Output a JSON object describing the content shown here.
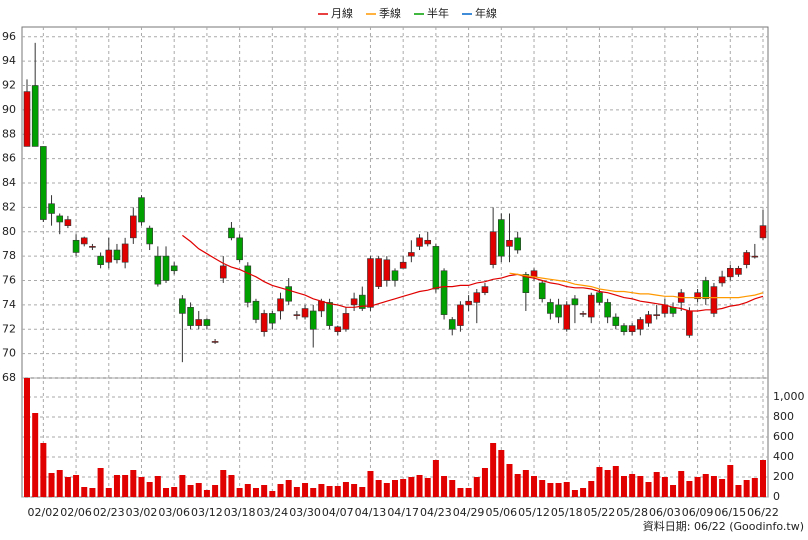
{
  "chart_data": {
    "type": "candlestick",
    "legend": "top",
    "grid": true,
    "up_color": "#e00000",
    "down_color": "#00a000",
    "categories": [
      null,
      null,
      "02/02",
      null,
      null,
      null,
      "02/06",
      null,
      null,
      null,
      "02/23",
      null,
      null,
      null,
      "03/02",
      null,
      null,
      null,
      "03/06",
      null,
      null,
      null,
      "03/12",
      null,
      null,
      null,
      "03/18",
      null,
      null,
      null,
      "03/24",
      null,
      null,
      null,
      "03/30",
      null,
      null,
      null,
      "04/07",
      null,
      null,
      null,
      "04/13",
      null,
      null,
      null,
      "04/17",
      null,
      null,
      null,
      "04/23",
      null,
      null,
      null,
      "04/29",
      null,
      null,
      null,
      "05/06",
      null,
      null,
      null,
      "05/12",
      null,
      null,
      null,
      "05/18",
      null,
      null,
      null,
      "05/22",
      null,
      null,
      null,
      "05/28",
      null,
      null,
      null,
      "06/03",
      null,
      null,
      null,
      "06/09",
      null,
      null,
      null,
      "06/15",
      null,
      null,
      null,
      "06/22"
    ],
    "open": [
      87,
      92,
      87,
      82.3,
      81.3,
      80.5,
      79.3,
      79,
      78.8,
      78,
      77.5,
      78.5,
      77.5,
      79.5,
      82.8,
      80.3,
      78,
      78,
      77.2,
      74.5,
      73.8,
      72.3,
      72.8,
      71,
      76.2,
      80.3,
      79.5,
      77.2,
      74.3,
      71.8,
      73.3,
      73.5,
      75.5,
      73.2,
      73,
      73.5,
      73.5,
      74.2,
      71.8,
      72,
      74,
      74.8,
      73.8,
      75.5,
      76,
      76.8,
      77,
      78,
      78.8,
      79,
      78.8,
      76.8,
      72.8,
      72.3,
      74,
      74.2,
      75,
      77.3,
      81,
      78.8,
      79.5,
      76.5,
      76.3,
      75.8,
      74.2,
      74,
      72,
      74.5,
      73.3,
      73,
      75,
      74.2,
      73,
      72.3,
      71.8,
      72,
      72.5,
      73.2,
      73.3,
      73.8,
      74.2,
      71.5,
      74.5,
      76,
      73.3,
      75.8,
      76.3,
      76.5,
      77.3,
      78,
      79.5
    ],
    "high": [
      92.5,
      95.5,
      87,
      83,
      81.5,
      81.3,
      79.8,
      79.6,
      79,
      78.3,
      79.5,
      79,
      79.5,
      82,
      83,
      80.5,
      78.8,
      78.8,
      77.5,
      74.8,
      74.2,
      73.5,
      72.9,
      71.2,
      78,
      80.8,
      79.8,
      77.5,
      74.5,
      73.6,
      73.5,
      75,
      76.2,
      73.5,
      74,
      74,
      74.5,
      74.5,
      72.3,
      73.8,
      75,
      75.5,
      78,
      78,
      78,
      77,
      78,
      79.3,
      79.8,
      80,
      79,
      77,
      73,
      74.3,
      74.8,
      75.3,
      75.8,
      82,
      81.5,
      81.5,
      80,
      76.7,
      77,
      76,
      74.5,
      74.5,
      74.3,
      74.8,
      73.5,
      75,
      75.3,
      74.5,
      73.3,
      72.5,
      72.5,
      73,
      73.5,
      74,
      74.5,
      74.2,
      75.3,
      73.8,
      75.3,
      76.3,
      75.8,
      76.8,
      77.3,
      77.2,
      78.5,
      79,
      81.8
    ],
    "low": [
      87,
      87,
      80.8,
      80.5,
      79.8,
      80.3,
      78,
      78.8,
      78.5,
      77,
      77,
      77.4,
      77,
      79,
      80.5,
      78.5,
      75.5,
      75.8,
      76.5,
      69.3,
      72,
      72,
      72,
      70.8,
      75.8,
      79.3,
      77.5,
      73.8,
      72.5,
      71.4,
      72,
      72.8,
      74,
      72.8,
      72.8,
      70.5,
      73,
      72,
      71.5,
      71.8,
      73.5,
      73.5,
      73.5,
      75.3,
      75.5,
      75.5,
      77,
      77.5,
      78.5,
      78.8,
      75,
      72.8,
      71.5,
      71.8,
      73.5,
      72.5,
      74.8,
      77,
      77.5,
      77.5,
      78.2,
      73.5,
      76,
      74.2,
      72.8,
      72.5,
      71.8,
      72.5,
      73,
      72.5,
      74,
      72.5,
      72,
      71.5,
      71.5,
      71.5,
      72.2,
      72.8,
      73,
      73,
      73.5,
      71.3,
      74.2,
      74,
      73,
      75.5,
      76,
      76.3,
      77,
      77.8,
      79.3
    ],
    "close": [
      91.5,
      87,
      81,
      81.5,
      80.8,
      81,
      78.3,
      79.5,
      78.8,
      77.3,
      78.5,
      77.7,
      79,
      81.3,
      80.8,
      79,
      75.7,
      76,
      76.8,
      73.3,
      72.3,
      72.8,
      72.3,
      71,
      77.2,
      79.5,
      77.7,
      74.2,
      72.8,
      73.3,
      72.5,
      74.5,
      74.3,
      73.2,
      73.7,
      72,
      74.3,
      72.3,
      72.2,
      73.3,
      74.5,
      73.7,
      77.8,
      77.8,
      77.7,
      76,
      77.5,
      78.3,
      79.5,
      79.3,
      75.3,
      73.2,
      72,
      74,
      74.3,
      75,
      75.5,
      80,
      78,
      79.3,
      78.5,
      75,
      76.8,
      74.5,
      73.3,
      73,
      74,
      74,
      73.3,
      74.8,
      74.2,
      73,
      72.3,
      71.8,
      72.3,
      72.8,
      73.2,
      73.2,
      74,
      73.3,
      75,
      73.5,
      75,
      74.5,
      75.5,
      76.3,
      77,
      77,
      78.3,
      78,
      80.5
    ],
    "ylim": [
      68,
      96.8
    ],
    "yticks": [
      68,
      70,
      72,
      74,
      76,
      78,
      80,
      82,
      84,
      86,
      88,
      90,
      92,
      94,
      96
    ],
    "series": [
      {
        "name": "月線",
        "color": "#e00000",
        "values": [
          null,
          null,
          null,
          null,
          null,
          null,
          null,
          null,
          null,
          null,
          null,
          null,
          null,
          null,
          null,
          null,
          null,
          null,
          null,
          79.7,
          79.2,
          78.6,
          78.2,
          77.8,
          77.4,
          77.1,
          76.9,
          76.6,
          76.3,
          75.9,
          75.6,
          75.4,
          75.2,
          75.0,
          74.8,
          74.5,
          74.3,
          74.1,
          74.0,
          73.8,
          73.8,
          73.9,
          73.9,
          74.1,
          74.3,
          74.5,
          74.7,
          74.9,
          75.1,
          75.2,
          75.4,
          75.5,
          75.5,
          75.6,
          75.6,
          75.8,
          75.9,
          76.1,
          76.2,
          76.4,
          76.5,
          76.3,
          76.2,
          76.0,
          75.8,
          75.7,
          75.5,
          75.4,
          75.4,
          75.3,
          75.1,
          75.0,
          74.8,
          74.6,
          74.5,
          74.3,
          74.2,
          74.1,
          74.0,
          73.8,
          73.7,
          73.5,
          73.5,
          73.6,
          73.6,
          73.7,
          73.9,
          74.0,
          74.2,
          74.5,
          74.7
        ]
      },
      {
        "name": "季線",
        "color": "#ff9900",
        "values": [
          null,
          null,
          null,
          null,
          null,
          null,
          null,
          null,
          null,
          null,
          null,
          null,
          null,
          null,
          null,
          null,
          null,
          null,
          null,
          null,
          null,
          null,
          null,
          null,
          null,
          null,
          null,
          null,
          null,
          null,
          null,
          null,
          null,
          null,
          null,
          null,
          null,
          null,
          null,
          null,
          null,
          null,
          null,
          null,
          null,
          null,
          null,
          null,
          null,
          null,
          null,
          null,
          null,
          null,
          null,
          null,
          null,
          null,
          null,
          76.6,
          76.5,
          76.4,
          76.3,
          76.2,
          76.1,
          76.0,
          75.9,
          75.7,
          75.6,
          75.5,
          75.3,
          75.2,
          75.1,
          75.1,
          75.0,
          74.9,
          74.9,
          74.8,
          74.7,
          74.7,
          74.6,
          74.6,
          74.6,
          74.6,
          74.6,
          74.6,
          74.6,
          74.6,
          74.7,
          74.8,
          75.0
        ]
      },
      {
        "name": "半年",
        "color": "#00a000",
        "values": [
          null,
          null,
          null,
          null,
          null,
          null,
          null,
          null,
          null,
          null,
          null,
          null,
          null,
          null,
          null,
          null,
          null,
          null,
          null,
          null,
          null,
          null,
          null,
          null,
          null,
          null,
          null,
          null,
          null,
          null,
          null,
          null,
          null,
          null,
          null,
          null,
          null,
          null,
          null,
          null,
          null,
          null,
          null,
          null,
          null,
          null,
          null,
          null,
          null,
          null,
          null,
          null,
          null,
          null,
          null,
          null,
          null,
          null,
          null,
          null,
          null,
          null,
          null,
          null,
          null,
          null,
          null,
          null,
          null,
          null,
          null,
          null,
          null,
          null,
          null,
          null,
          null,
          null,
          null,
          null,
          null,
          null,
          null,
          null,
          null,
          null,
          null,
          null,
          null,
          null,
          null
        ]
      },
      {
        "name": "年線",
        "color": "#0066cc",
        "values": [
          null,
          null,
          null,
          null,
          null,
          null,
          null,
          null,
          null,
          null,
          null,
          null,
          null,
          null,
          null,
          null,
          null,
          null,
          null,
          null,
          null,
          null,
          null,
          null,
          null,
          null,
          null,
          null,
          null,
          null,
          null,
          null,
          null,
          null,
          null,
          null,
          null,
          null,
          null,
          null,
          null,
          null,
          null,
          null,
          null,
          null,
          null,
          null,
          null,
          null,
          null,
          null,
          null,
          null,
          null,
          null,
          null,
          null,
          null,
          null,
          null,
          null,
          null,
          null,
          null,
          null,
          null,
          null,
          null,
          null,
          null,
          null,
          null,
          null,
          null,
          null,
          null,
          null,
          null,
          null,
          null,
          null,
          null,
          null,
          null,
          null,
          null,
          null,
          null,
          null,
          null
        ]
      }
    ],
    "volume": {
      "color": "#e00000",
      "values": [
        1190,
        840,
        540,
        240,
        270,
        200,
        220,
        100,
        90,
        290,
        90,
        220,
        220,
        270,
        200,
        150,
        210,
        90,
        100,
        220,
        120,
        140,
        70,
        120,
        270,
        220,
        90,
        130,
        90,
        120,
        60,
        130,
        170,
        100,
        140,
        90,
        130,
        110,
        110,
        150,
        130,
        100,
        260,
        170,
        140,
        170,
        180,
        200,
        220,
        190,
        370,
        210,
        170,
        90,
        90,
        200,
        290,
        540,
        470,
        330,
        230,
        270,
        210,
        170,
        140,
        140,
        150,
        70,
        90,
        160,
        300,
        270,
        310,
        210,
        230,
        210,
        150,
        250,
        200,
        120,
        260,
        160,
        200,
        230,
        210,
        180,
        320,
        120,
        170,
        190,
        370
      ],
      "ylim": [
        0,
        1190
      ],
      "yticks": [
        0,
        200,
        400,
        600,
        800,
        {
          "value": 1000,
          "label": "1,000"
        }
      ]
    },
    "footnote": "資料日期: 06/22 (Goodinfo.tw)"
  }
}
